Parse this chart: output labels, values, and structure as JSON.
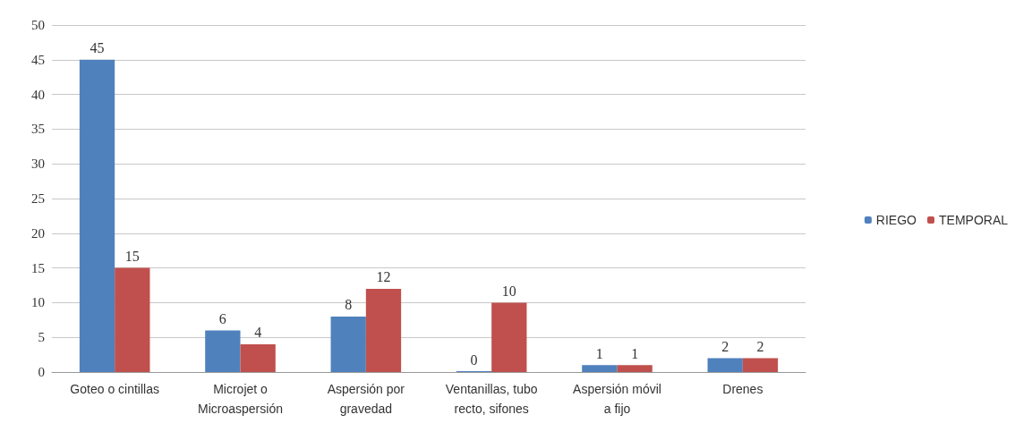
{
  "chart_data": {
    "type": "bar",
    "categories": [
      "Goteo o cintillas",
      "Microjet o\nMicroaspersión",
      "Aspersión por\ngravedad",
      "Ventanillas, tubo\nrecto, sifones",
      "Aspersión móvil\na fijo",
      "Drenes"
    ],
    "series": [
      {
        "name": "RIEGO",
        "color": "#4f81bd",
        "values": [
          45,
          6,
          8,
          0,
          1,
          2
        ]
      },
      {
        "name": "TEMPORAL",
        "color": "#c0504d",
        "values": [
          15,
          4,
          12,
          10,
          1,
          2
        ]
      }
    ],
    "ylim": [
      0,
      50
    ],
    "yticks": [
      0,
      5,
      10,
      15,
      20,
      25,
      30,
      35,
      40,
      45,
      50
    ],
    "grid": "y",
    "legend": "right",
    "data_labels": true
  }
}
